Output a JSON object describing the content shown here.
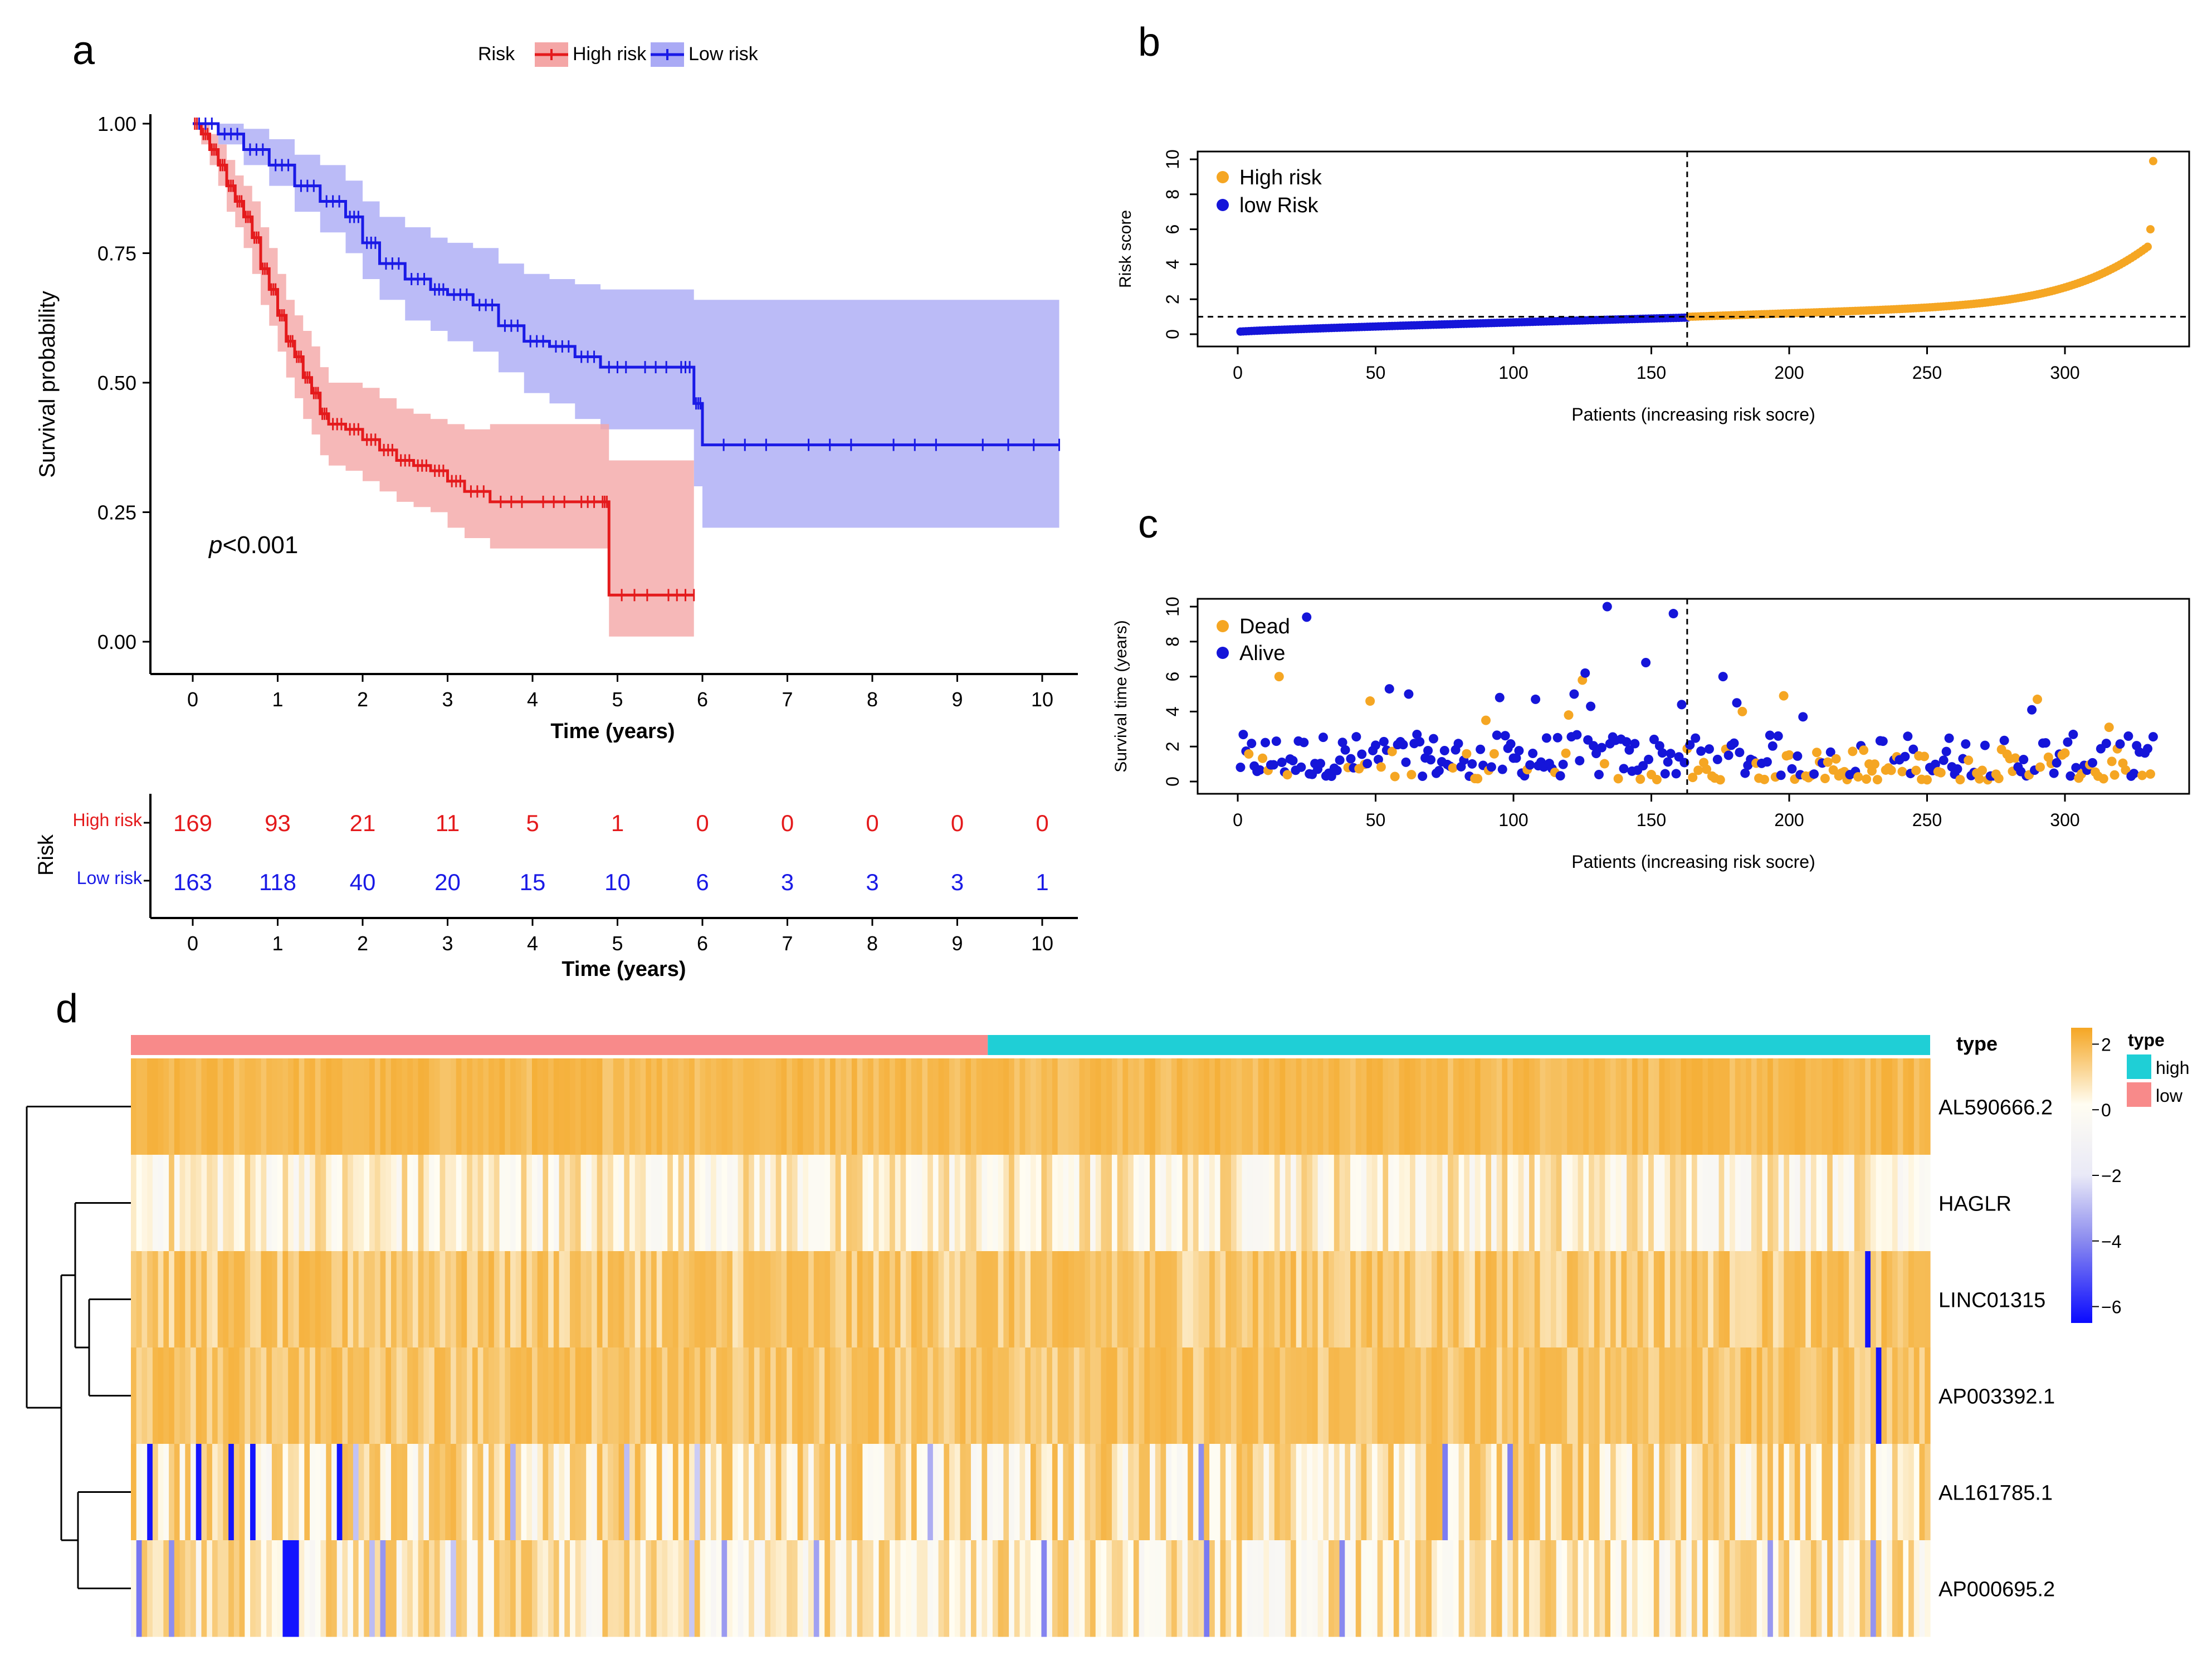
{
  "figure": {
    "panel_labels": [
      "a",
      "b",
      "c",
      "d"
    ]
  },
  "colors": {
    "high_risk_km": "#e41a1c",
    "high_risk_band": "#f4a6a6",
    "low_risk_km": "#1a1ae6",
    "low_risk_band": "#aaaaf5",
    "orange": "#f5a623",
    "blue": "#1515d9",
    "annot_low": "#f88a8a",
    "annot_high": "#1fcfd6"
  },
  "chart_data": [
    {
      "id": "a",
      "type": "line",
      "subtype": "kaplan-meier",
      "legend": {
        "title": "Risk",
        "entries": [
          "High risk",
          "Low risk"
        ],
        "placement": "top"
      },
      "xlabel": "Time (years)",
      "ylabel": "Survival probability",
      "xlim": [
        0,
        10
      ],
      "ylim": [
        0,
        1
      ],
      "xticks": [
        "0",
        "1",
        "2",
        "3",
        "4",
        "5",
        "6",
        "7",
        "8",
        "9",
        "10"
      ],
      "yticks": [
        "0.00",
        "0.25",
        "0.50",
        "0.75",
        "1.00"
      ],
      "annotation": {
        "p_symbol": "p",
        "p_value": "<0.001"
      },
      "series": [
        {
          "name": "High risk",
          "x": [
            0,
            0.1,
            0.2,
            0.3,
            0.4,
            0.5,
            0.6,
            0.7,
            0.8,
            0.9,
            1.0,
            1.1,
            1.2,
            1.3,
            1.4,
            1.5,
            1.6,
            1.8,
            2.0,
            2.2,
            2.4,
            2.6,
            2.8,
            3.0,
            3.2,
            3.5,
            4.0,
            4.5,
            4.8,
            4.9,
            5.5,
            5.9
          ],
          "y": [
            1.0,
            0.98,
            0.95,
            0.92,
            0.88,
            0.85,
            0.82,
            0.78,
            0.72,
            0.68,
            0.63,
            0.58,
            0.55,
            0.51,
            0.48,
            0.44,
            0.42,
            0.41,
            0.39,
            0.37,
            0.35,
            0.34,
            0.33,
            0.31,
            0.29,
            0.27,
            0.27,
            0.27,
            0.27,
            0.09,
            0.09,
            0.09
          ],
          "lower": [
            1.0,
            0.96,
            0.92,
            0.88,
            0.83,
            0.8,
            0.76,
            0.71,
            0.65,
            0.61,
            0.56,
            0.51,
            0.47,
            0.43,
            0.4,
            0.36,
            0.34,
            0.33,
            0.31,
            0.29,
            0.27,
            0.26,
            0.25,
            0.22,
            0.2,
            0.18,
            0.18,
            0.18,
            0.18,
            0.01,
            0.01,
            0.01
          ],
          "upper": [
            1.0,
            1.0,
            0.98,
            0.96,
            0.93,
            0.9,
            0.88,
            0.85,
            0.8,
            0.76,
            0.71,
            0.66,
            0.63,
            0.6,
            0.57,
            0.53,
            0.5,
            0.5,
            0.49,
            0.47,
            0.45,
            0.44,
            0.43,
            0.42,
            0.41,
            0.42,
            0.42,
            0.42,
            0.42,
            0.35,
            0.35,
            0.35
          ],
          "at_risk": [
            169,
            93,
            21,
            11,
            5,
            1,
            0,
            0,
            0,
            0,
            0
          ]
        },
        {
          "name": "Low risk",
          "x": [
            0,
            0.3,
            0.6,
            0.9,
            1.2,
            1.5,
            1.8,
            2.0,
            2.2,
            2.5,
            2.8,
            3.0,
            3.3,
            3.6,
            3.9,
            4.2,
            4.5,
            4.8,
            5.2,
            5.7,
            5.9,
            6.0,
            7.0,
            8.0,
            9.0,
            10.2
          ],
          "y": [
            1.0,
            0.98,
            0.95,
            0.92,
            0.88,
            0.85,
            0.82,
            0.77,
            0.73,
            0.7,
            0.68,
            0.67,
            0.65,
            0.61,
            0.58,
            0.57,
            0.55,
            0.53,
            0.53,
            0.53,
            0.46,
            0.38,
            0.38,
            0.38,
            0.38,
            0.38
          ],
          "lower": [
            1.0,
            0.96,
            0.92,
            0.88,
            0.83,
            0.79,
            0.75,
            0.7,
            0.66,
            0.62,
            0.6,
            0.58,
            0.56,
            0.52,
            0.48,
            0.46,
            0.43,
            0.41,
            0.41,
            0.41,
            0.3,
            0.22,
            0.22,
            0.22,
            0.22,
            0.22
          ],
          "upper": [
            1.0,
            1.0,
            0.99,
            0.97,
            0.94,
            0.92,
            0.89,
            0.85,
            0.82,
            0.8,
            0.78,
            0.77,
            0.76,
            0.73,
            0.71,
            0.7,
            0.69,
            0.68,
            0.68,
            0.68,
            0.66,
            0.66,
            0.66,
            0.66,
            0.66,
            0.66
          ],
          "at_risk": [
            163,
            118,
            40,
            20,
            15,
            10,
            6,
            3,
            3,
            3,
            1
          ]
        }
      ],
      "risk_table": {
        "ylabel": "Risk",
        "row_labels": [
          "High risk",
          "Low risk"
        ],
        "xlabel": "Time (years)"
      }
    },
    {
      "id": "b",
      "type": "scatter",
      "xlabel": "Patients (increasing risk socre)",
      "ylabel": "Risk score",
      "xlim": [
        0,
        332
      ],
      "ylim": [
        0,
        10
      ],
      "xticks": [
        "0",
        "50",
        "100",
        "150",
        "200",
        "250",
        "300"
      ],
      "yticks": [
        "0",
        "2",
        "4",
        "6",
        "8",
        "10"
      ],
      "cutoff_x": 163,
      "cutoff_y": 1,
      "legend": {
        "entries": [
          "High risk",
          "low Risk"
        ],
        "placement": "top-left"
      },
      "series": [
        {
          "name": "low Risk",
          "x_range": [
            1,
            163
          ],
          "y_start": 0.15,
          "y_end": 0.95
        },
        {
          "name": "High risk",
          "x_range": [
            164,
            332
          ],
          "y_start": 1.0,
          "y_end": 5.0,
          "outliers": [
            [
              331,
              6.0
            ],
            [
              332,
              9.9
            ]
          ]
        }
      ]
    },
    {
      "id": "c",
      "type": "scatter",
      "xlabel": "Patients (increasing risk socre)",
      "ylabel": "Survival time (years)",
      "xlim": [
        0,
        332
      ],
      "ylim": [
        0,
        10
      ],
      "xticks": [
        "0",
        "50",
        "100",
        "150",
        "200",
        "250",
        "300"
      ],
      "yticks": [
        "0",
        "2",
        "4",
        "6",
        "8",
        "10"
      ],
      "cutoff_x": 163,
      "legend": {
        "entries": [
          "Dead",
          "Alive"
        ],
        "placement": "top-left"
      },
      "series": [
        {
          "name": "Dead",
          "n_points": 130,
          "notable": [
            [
              15,
              6.0
            ],
            [
              48,
              4.6
            ],
            [
              90,
              3.5
            ],
            [
              120,
              3.8
            ],
            [
              125,
              5.8
            ],
            [
              198,
              4.9
            ],
            [
              183,
              4.0
            ],
            [
              290,
              4.7
            ],
            [
              316,
              3.1
            ]
          ]
        },
        {
          "name": "Alive",
          "n_points": 202,
          "notable": [
            [
              25,
              9.4
            ],
            [
              55,
              5.3
            ],
            [
              62,
              5.0
            ],
            [
              95,
              4.8
            ],
            [
              108,
              4.7
            ],
            [
              122,
              5.0
            ],
            [
              126,
              6.2
            ],
            [
              128,
              4.3
            ],
            [
              134,
              10.0
            ],
            [
              148,
              6.8
            ],
            [
              158,
              9.6
            ],
            [
              161,
              4.4
            ],
            [
              176,
              6.0
            ],
            [
              181,
              4.5
            ],
            [
              196,
              2.6
            ],
            [
              205,
              3.7
            ],
            [
              288,
              4.1
            ]
          ]
        }
      ]
    },
    {
      "id": "d",
      "type": "heatmap",
      "rows": [
        "AL590666.2",
        "HAGLR",
        "LINC01315",
        "AP003392.1",
        "AL161785.1",
        "AP000695.2"
      ],
      "columns_count": 332,
      "annotation": {
        "title": "type",
        "legend_title": "type",
        "legend_entries": [
          "high",
          "low"
        ],
        "groups": [
          {
            "name": "low",
            "n": 163
          },
          {
            "name": "high",
            "n": 169
          }
        ]
      },
      "colorbar": {
        "ticks": [
          "2",
          "0",
          "−2",
          "−4",
          "−6"
        ],
        "range": [
          -6.5,
          2.5
        ]
      },
      "row_means": [
        1.5,
        0.2,
        1.1,
        1.2,
        0.5,
        0.3
      ],
      "dendrogram": true
    }
  ]
}
